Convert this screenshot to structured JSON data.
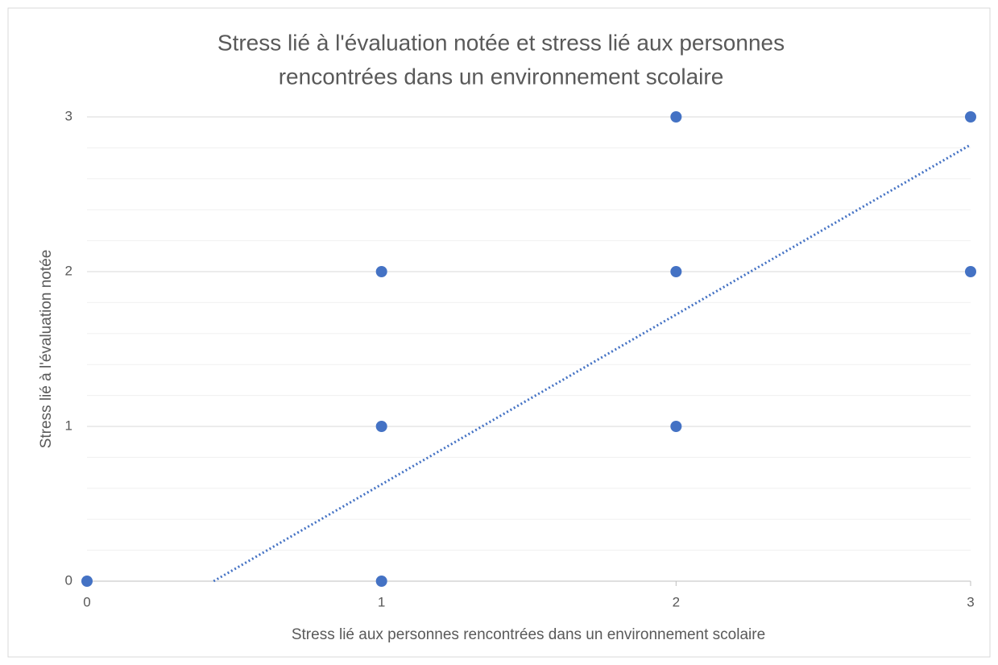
{
  "chart_data": {
    "type": "scatter",
    "title": [
      "Stress lié à l'évaluation notée et stress lié aux personnes",
      "rencontrées dans un environnement scolaire"
    ],
    "xlabel": "Stress lié aux personnes rencontrées dans un environnement scolaire",
    "ylabel": "Stress lié à l'évaluation notée",
    "series": [
      {
        "color": "#4472c4",
        "x": [
          0,
          1,
          1,
          1,
          2,
          2,
          2,
          3,
          3
        ],
        "values": [
          0,
          0,
          1,
          2,
          1,
          2,
          3,
          2,
          3
        ]
      }
    ],
    "trendline": {
      "color": "#4472c4",
      "style": "dotted",
      "x": [
        0.43,
        3
      ],
      "values": [
        0,
        2.82
      ]
    },
    "xlim": [
      0,
      3
    ],
    "xticks": [
      0,
      1,
      2,
      3
    ],
    "ylim": [
      0,
      3
    ],
    "yticks": [
      0,
      1,
      2,
      3
    ],
    "yminorticks": [
      0.2,
      0.4,
      0.6,
      0.8,
      1.2,
      1.4,
      1.6,
      1.8,
      2.2,
      2.4,
      2.6,
      2.8
    ],
    "grid": true
  }
}
